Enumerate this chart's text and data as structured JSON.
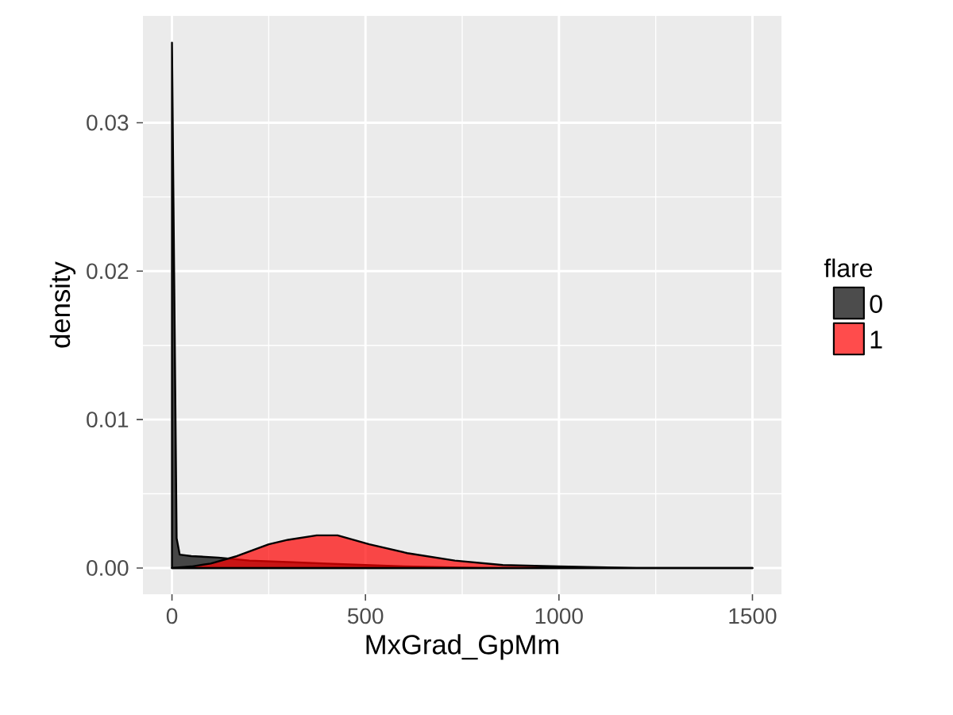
{
  "chart_data": {
    "type": "area",
    "xlabel": "MxGrad_GpMm",
    "ylabel": "density",
    "legend_title": "flare",
    "legend": "right",
    "grid": true,
    "xlim": [
      -75,
      1575
    ],
    "ylim": [
      -0.00177,
      0.0372
    ],
    "xticks": [
      0,
      500,
      1000,
      1500
    ],
    "yticks": [
      {
        "value": 0,
        "label": "0.00"
      },
      {
        "value": 0.01,
        "label": "0.01"
      },
      {
        "value": 0.02,
        "label": "0.02"
      },
      {
        "value": 0.03,
        "label": "0.03"
      }
    ],
    "series": [
      {
        "name": "0",
        "color": "#000000",
        "x": [
          0,
          12,
          20,
          50,
          120,
          200,
          300,
          400,
          500,
          600,
          800,
          1000,
          1500
        ],
        "values": [
          0.0354,
          0.002,
          0.0009,
          0.0008,
          0.0007,
          0.0005,
          0.0004,
          0.0003,
          0.0002,
          0.0001,
          0,
          0,
          0
        ]
      },
      {
        "name": "1",
        "color": "#ff0000",
        "x": [
          0,
          50,
          100,
          168,
          250,
          300,
          374,
          428,
          510,
          608,
          731,
          855,
          1000,
          1200,
          1500
        ],
        "values": [
          0,
          0.0001,
          0.0003,
          0.0008,
          0.0016,
          0.0019,
          0.0022,
          0.0022,
          0.0016,
          0.001,
          0.0005,
          0.0002,
          0.0001,
          0,
          0
        ]
      }
    ]
  }
}
